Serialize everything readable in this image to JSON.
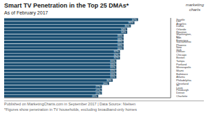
{
  "chart_data": {
    "type": "bar",
    "orientation": "horizontal",
    "title": "Smart TV Penetration in the Top 25 DMAs*",
    "subtitle": "As of February 2017",
    "annotations": [
      "Published on MarketingCharts.com in September 2017 | Data Source: Nielsen",
      "*Figures show penetration in TV households, excluding broadband-only homes",
      "marketing",
      "charts"
    ],
    "categories": [
      "Seattle",
      "Los Angeles",
      "Dallas",
      "Orlando",
      "Houston",
      "Washington, DC",
      "San Francisco",
      "Sacramento",
      "Phoenix",
      "New York",
      "Denver",
      "Chicago",
      "Boston",
      "Tampa",
      "Portland",
      "Minneapolis",
      "Miami",
      "Baltimore",
      "Atlanta",
      "Philadelphia",
      "Cleveland",
      "St. Louis",
      "Pittsburgh",
      "Detroit",
      "Charlotte"
    ],
    "values": [
      37,
      36,
      35,
      34,
      34,
      33,
      33,
      33,
      33,
      33,
      32,
      32,
      32,
      31,
      31,
      31,
      31,
      31,
      31,
      30,
      29,
      27,
      27,
      27,
      26
    ],
    "value_labels": [
      "37%",
      "36%",
      "35%",
      "34%",
      "34%",
      "33%",
      "33%",
      "33%",
      "33%",
      "33%",
      "32%",
      "32%",
      "32%",
      "31%",
      "31%",
      "31%",
      "31%",
      "31%",
      "31%",
      "30%",
      "29%",
      "27%",
      "27%",
      "27%",
      "26%"
    ],
    "color": "#1b4f72",
    "xlim": [
      0,
      46
    ],
    "data_labels": true,
    "tick_labels": "y",
    "grid": false
  }
}
